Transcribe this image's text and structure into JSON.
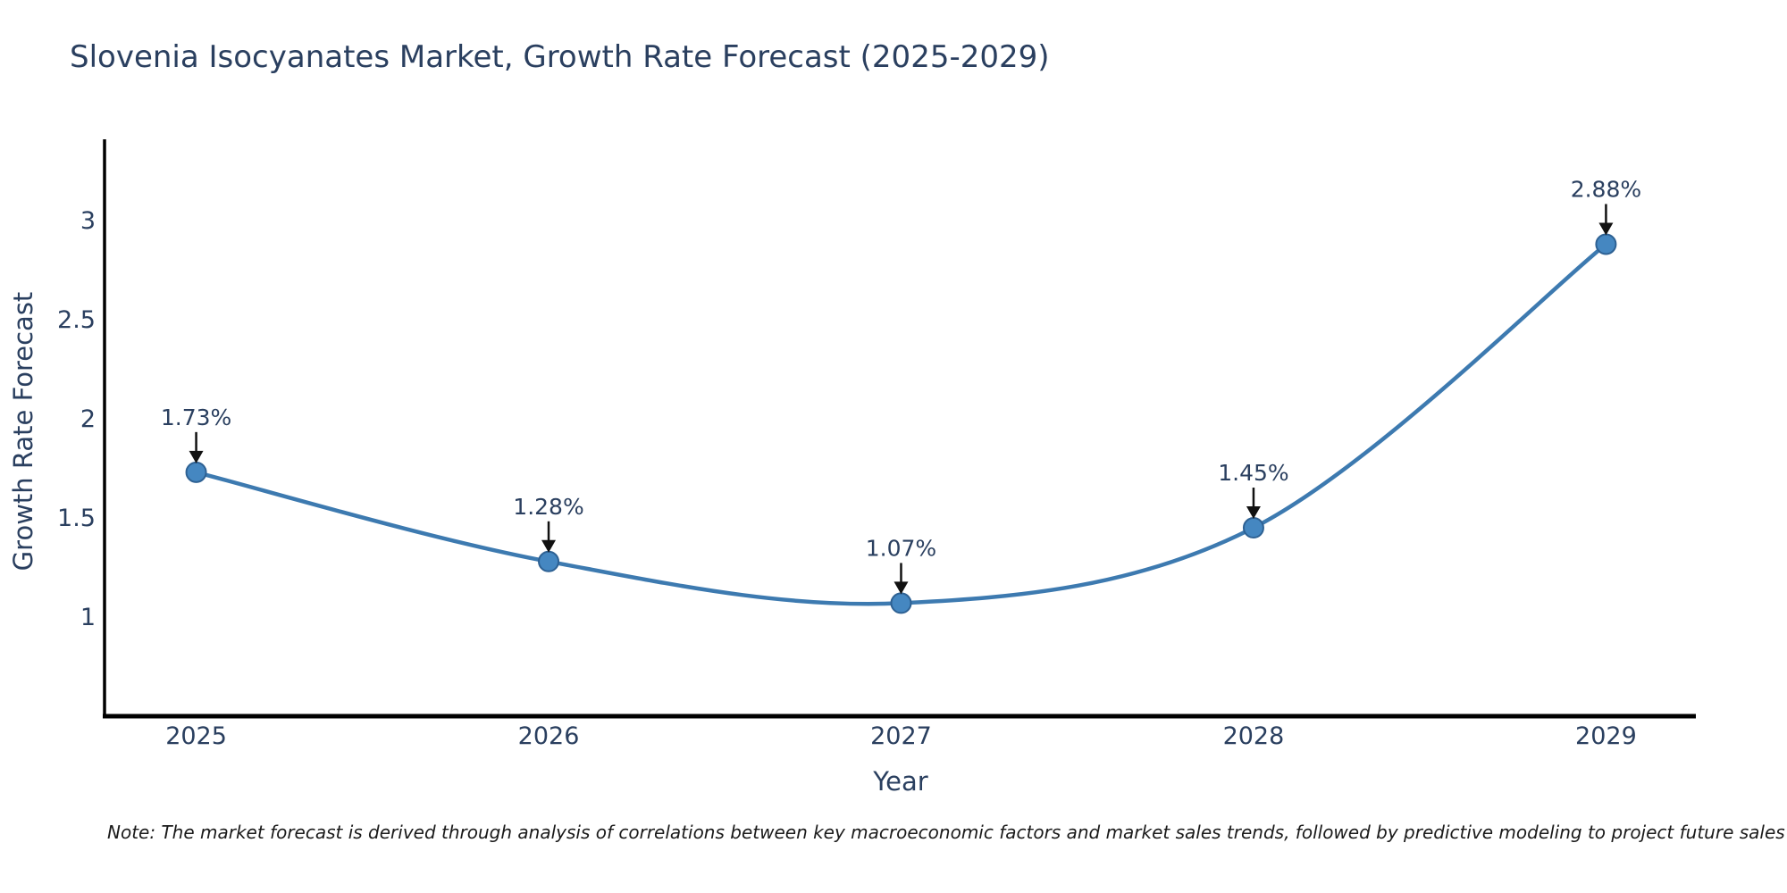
{
  "title": "Slovenia Isocyanates Market, Growth Rate Forecast (2025-2029)",
  "note": "Note: The market forecast is derived through analysis of correlations between key macroeconomic factors and market sales trends, followed by predictive modeling to project future sales",
  "chart_data": {
    "type": "line",
    "title": "Slovenia Isocyanates Market, Growth Rate Forecast (2025-2029)",
    "xlabel": "Year",
    "ylabel": "Growth Rate Forecast",
    "x": [
      2025,
      2026,
      2027,
      2028,
      2029
    ],
    "values": [
      1.73,
      1.28,
      1.07,
      1.45,
      2.88
    ],
    "point_labels": [
      "1.73%",
      "1.28%",
      "1.07%",
      "1.45%",
      "2.88%"
    ],
    "xticks": [
      2025,
      2026,
      2027,
      2028,
      2029
    ],
    "xtick_labels": [
      "2025",
      "2026",
      "2027",
      "2028",
      "2029"
    ],
    "yticks": [
      1,
      1.5,
      2,
      2.5,
      3
    ],
    "ytick_labels": [
      "1",
      "1.5",
      "2",
      "2.5",
      "3"
    ],
    "xlim": [
      2024.74,
      2029.255
    ],
    "ylim": [
      0.5,
      3.4
    ],
    "grid": false,
    "legend": "none",
    "line_shape": "spline",
    "colors": {
      "line": "#3d7ab0",
      "marker_fill": "#4587c1",
      "marker_stroke": "#2e6193",
      "axis": "#000000",
      "text": "#2a3f5f",
      "annotation_arrow": "#111111",
      "note_text": "#1a1a1a",
      "background": "#ffffff"
    }
  }
}
